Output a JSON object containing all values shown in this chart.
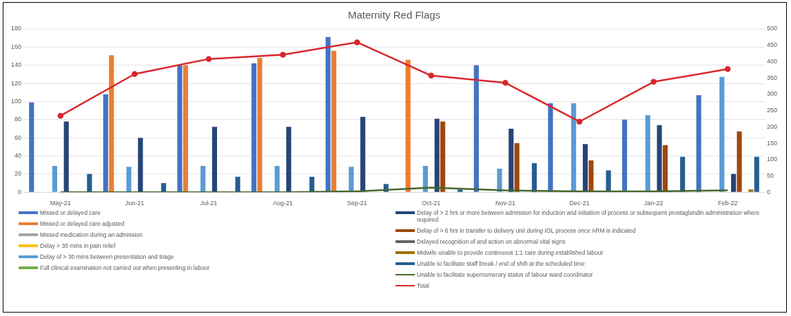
{
  "chart_data": {
    "type": "bar",
    "title": "Maternity Red Flags",
    "categories": [
      "May-21",
      "Jun-21",
      "Jul-21",
      "Aug-21",
      "Sep-21",
      "Oct-21",
      "Nov-21",
      "Dec-21",
      "Jan-22",
      "Feb-22"
    ],
    "series": [
      {
        "name": "Missed or delayed care",
        "color": "#4472c4",
        "values": [
          99,
          108,
          140,
          142,
          171,
          0,
          140,
          98,
          80,
          107
        ]
      },
      {
        "name": "Missed or delayed care adjusted",
        "color": "#ed7d31",
        "values": [
          0,
          151,
          140,
          148,
          156,
          146,
          0,
          0,
          0,
          0
        ]
      },
      {
        "name": "Missed medication during an admission",
        "color": "#a5a5a5",
        "values": [
          0,
          0,
          0,
          0,
          0,
          0,
          0,
          0,
          0,
          0
        ]
      },
      {
        "name": "Delay > 30 mins in pain relief",
        "color": "#ffc000",
        "values": [
          0,
          0,
          0,
          0,
          0,
          0,
          0,
          0,
          0,
          0
        ]
      },
      {
        "name": "Delay of > 30 mins between presentation and triage",
        "color": "#5b9bd5",
        "values": [
          29,
          28,
          29,
          29,
          28,
          29,
          26,
          98,
          85,
          127
        ]
      },
      {
        "name": "Full clinical examination not carried out when presenting in labour",
        "color": "#70ad47",
        "values": [
          0,
          0,
          0,
          0,
          0,
          0,
          0,
          0,
          0,
          0
        ]
      },
      {
        "name": "Delay of > 2 hrs or more between admission for induction and initiation of process or subsequent prostaglandin administration where required",
        "color": "#264478",
        "values": [
          78,
          60,
          72,
          72,
          83,
          81,
          70,
          53,
          74,
          20
        ]
      },
      {
        "name": "Delay of > 6 hrs in transfer to delivery unit during IOL process once ARM is indicated",
        "color": "#9e480e",
        "values": [
          0,
          0,
          0,
          0,
          0,
          78,
          54,
          35,
          52,
          67
        ]
      },
      {
        "name": "Delayed recognition of and action on abnormal vital signs",
        "color": "#636363",
        "values": [
          0,
          0,
          0,
          0,
          0,
          0,
          0,
          0,
          0,
          0
        ]
      },
      {
        "name": "Midwife unable to provide continuous 1:1 care during established labour",
        "color": "#997300",
        "values": [
          0,
          0,
          0,
          0,
          0,
          0,
          0,
          0,
          0,
          3
        ]
      },
      {
        "name": "Unable to facilitate staff break / end of shift at the scheduled time",
        "color": "#255e91",
        "values": [
          20,
          10,
          17,
          17,
          9,
          3,
          32,
          24,
          39,
          39
        ]
      },
      {
        "name": "Unable to facilitate supernumerary status of labour ward coordinator",
        "color": "#43682b",
        "type": "line",
        "marker": "none",
        "values": [
          0,
          0,
          0,
          0,
          1,
          5,
          2,
          1,
          1,
          2
        ]
      },
      {
        "name": "Total",
        "color": "#d9262b",
        "type": "line",
        "marker": "circle",
        "axis": "y2",
        "values": [
          234,
          362,
          408,
          421,
          459,
          357,
          335,
          216,
          338,
          377
        ]
      }
    ],
    "ylim": [
      0,
      180
    ],
    "yticks": [
      0,
      20,
      40,
      60,
      80,
      100,
      120,
      140,
      160,
      180
    ],
    "y2lim": [
      0,
      500
    ],
    "y2ticks": [
      0,
      50,
      100,
      150,
      200,
      250,
      300,
      350,
      400,
      450,
      500
    ],
    "grid": "y",
    "legend": "bottom"
  }
}
